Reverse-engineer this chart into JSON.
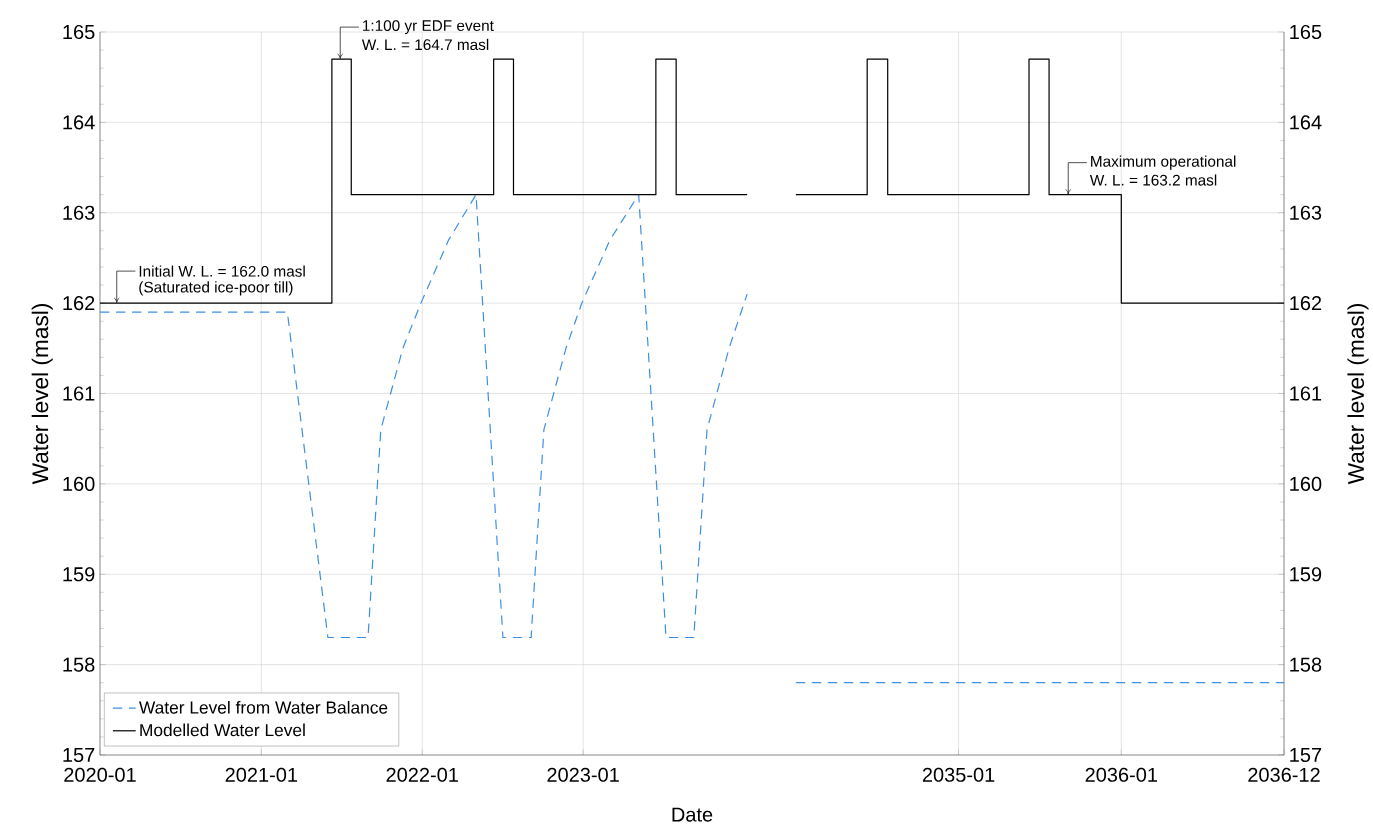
{
  "chart_data": [
    {
      "type": "line",
      "xlabel": "Date",
      "ylabel": "Water level (masl)",
      "xlim": [
        "2020-01-01",
        "2024-03-09"
      ],
      "xticks": [
        "2020-01",
        "2021-01",
        "2022-01",
        "2023-01"
      ],
      "ylim": [
        157,
        165
      ],
      "yticks": [
        157,
        158,
        159,
        160,
        161,
        162,
        163,
        164,
        165
      ],
      "grid": true,
      "legend": "bottom left",
      "series": [
        {
          "name": "Water Level from Water Balance",
          "color": "#3f8fdf",
          "line_style": "dashed",
          "x": [
            "2020-01-01",
            "2021-03-01",
            "2021-06-01",
            "2021-08-31",
            "2021-09-29",
            "2021-11-18",
            "2021-12-29",
            "2022-03-02",
            "2022-05-03",
            "2022-07-03",
            "2022-09-05",
            "2022-10-04",
            "2022-11-23",
            "2022-12-29",
            "2023-03-03",
            "2023-05-07",
            "2023-07-08",
            "2023-09-09",
            "2023-10-09",
            "2023-11-28",
            "2024-01-08"
          ],
          "values": [
            161.9,
            161.9,
            158.3,
            158.3,
            160.6,
            161.5,
            162.0,
            162.7,
            163.2,
            158.3,
            158.3,
            160.6,
            161.5,
            162.0,
            162.7,
            163.2,
            158.3,
            158.3,
            160.6,
            161.5,
            162.1
          ]
        },
        {
          "name": "Modelled Water Level",
          "type": "step",
          "color": "#000000",
          "line_style": "solid",
          "x": [
            "2020-01-01",
            "2021-06-10",
            "2021-07-24",
            "2022-06-12",
            "2022-07-27",
            "2023-06-15",
            "2023-07-31",
            "2024-01-08"
          ],
          "values": [
            162.0,
            164.7,
            163.2,
            164.7,
            163.2,
            164.7,
            163.2,
            163.2
          ]
        }
      ],
      "annotations": [
        {
          "text": "1:100 yr EDF event",
          "x": "2021-06-29",
          "y": 164.7
        },
        "W. L. = 164.7 masl",
        {
          "text": "Initial W. L. = 162.0 masl",
          "x": "2020-02-08",
          "y": 162.0
        },
        "(Saturated ice-poor till)"
      ]
    },
    {
      "type": "line",
      "ylabel": "Water level (masl)",
      "xlim": [
        "2033-11-13",
        "2036-12-31"
      ],
      "xticks": [
        "2035-01",
        "2036-01",
        {
          "value": "2036-12-31",
          "label": "2036-12"
        }
      ],
      "ylim": [
        157,
        165
      ],
      "yticks": [
        157,
        158,
        159,
        160,
        161,
        162,
        163,
        164,
        165
      ],
      "grid": true,
      "series": [
        {
          "color": "#3f8fdf",
          "line_style": "dashed",
          "x": [
            "2034-01-01",
            "2036-12-31"
          ],
          "values": [
            157.8,
            157.8
          ]
        },
        {
          "type": "step",
          "color": "#000000",
          "line_style": "solid",
          "x": [
            "2034-01-01",
            "2034-06-10",
            "2034-07-26",
            "2035-06-08",
            "2035-07-23",
            "2036-01-01",
            "2036-12-31"
          ],
          "values": [
            163.2,
            164.7,
            163.2,
            164.7,
            163.2,
            162.0,
            162.0
          ]
        }
      ],
      "annotations": [
        {
          "text": "Maximum operational",
          "x": "2035-09-04",
          "y": 163.2
        },
        "W. L. = 163.2 masl"
      ]
    }
  ]
}
